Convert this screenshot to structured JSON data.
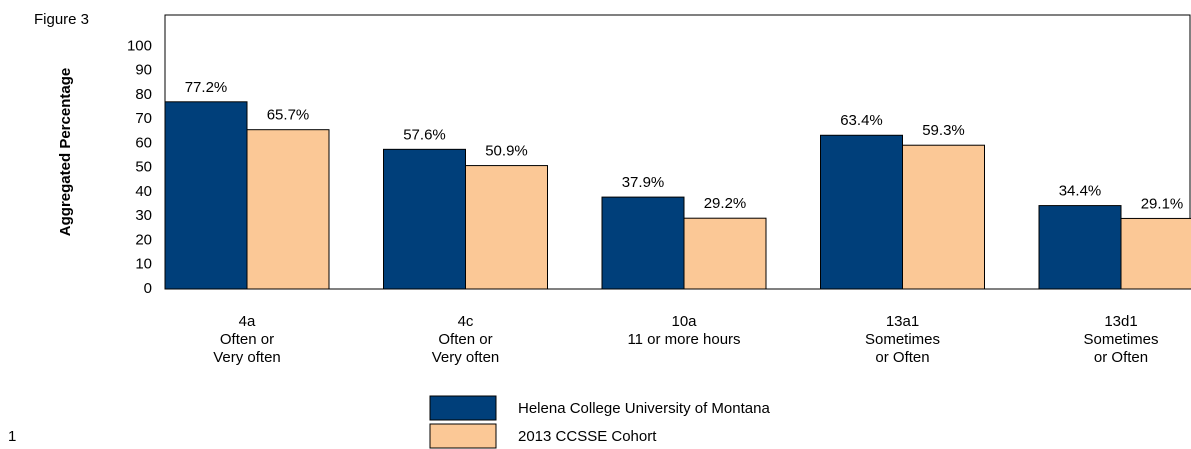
{
  "chart_data": {
    "type": "bar",
    "figure_label": "Figure 3",
    "page_number": "1",
    "ylabel": "Aggregated Percentage",
    "categories": [
      [
        "4a",
        "Often or",
        "Very often"
      ],
      [
        "4c",
        "Often or",
        "Very often"
      ],
      [
        "10a",
        "11 or more hours"
      ],
      [
        "13a1",
        "Sometimes",
        "or Often"
      ],
      [
        "13d1",
        "Sometimes",
        "or Often"
      ]
    ],
    "series": [
      {
        "name": "Helena College University of Montana",
        "color": "#003f7a",
        "values": [
          77.2,
          57.6,
          37.9,
          63.4,
          34.4
        ],
        "value_labels": [
          "77.2%",
          "57.6%",
          "37.9%",
          "63.4%",
          "34.4%"
        ]
      },
      {
        "name": "2013 CCSSE Cohort",
        "color": "#fbc896",
        "values": [
          65.7,
          50.9,
          29.2,
          59.3,
          29.1
        ],
        "value_labels": [
          "65.7%",
          "50.9%",
          "29.2%",
          "59.3%",
          "29.1%"
        ]
      }
    ],
    "ylim": [
      0,
      113
    ],
    "yticks": [
      0,
      10,
      20,
      30,
      40,
      50,
      60,
      70,
      80,
      90,
      100
    ],
    "grid": false
  }
}
